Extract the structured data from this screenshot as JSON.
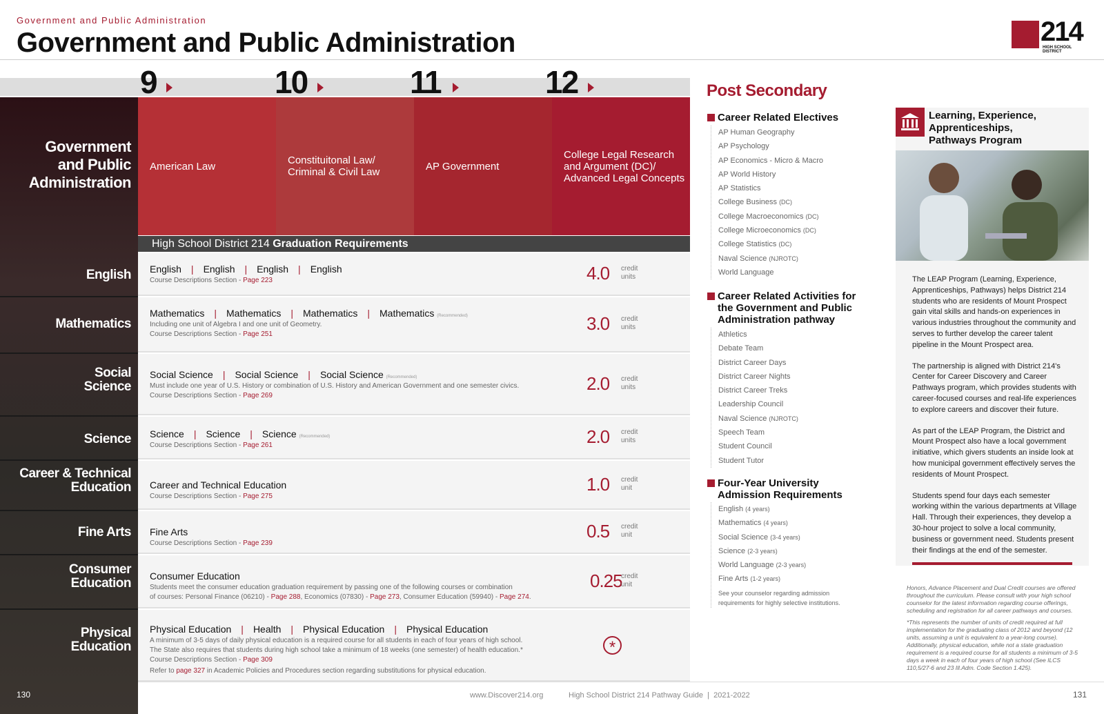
{
  "header": {
    "kicker": "Government and Public Administration",
    "title": "Government and Public Administration",
    "logo_number": "214",
    "logo_sub": "HIGH SCHOOL DISTRICT"
  },
  "grades": [
    "9",
    "10",
    "11",
    "12"
  ],
  "pathway_title": [
    "Government",
    "and Public",
    "Administration"
  ],
  "courses": [
    [
      "American Law"
    ],
    [
      "Constituitonal Law/",
      "Criminal & Civil Law"
    ],
    [
      "AP Government"
    ],
    [
      "College Legal Research",
      "and Argument (DC)/",
      "Advanced Legal Concepts"
    ]
  ],
  "grad_bar": {
    "prefix": "High School District 214 ",
    "bold": "Graduation Requirements"
  },
  "rows": [
    {
      "label": [
        "English"
      ],
      "courses": [
        "English",
        "English",
        "English",
        "English"
      ],
      "rec": "",
      "notes": [],
      "page_prefix": "Course Descriptions Section - ",
      "page": "Page 223",
      "credit": "4.0",
      "credit_label": [
        "credit",
        "units"
      ]
    },
    {
      "label": [
        "Mathematics"
      ],
      "courses": [
        "Mathematics",
        "Mathematics",
        "Mathematics",
        "Mathematics"
      ],
      "rec": "(Recommended)",
      "notes": [
        "Including one unit of Algebra I and one unit of Geometry."
      ],
      "page_prefix": "Course Descriptions Section - ",
      "page": "Page 251",
      "credit": "3.0",
      "credit_label": [
        "credit",
        "units"
      ]
    },
    {
      "label": [
        "Social",
        "Science"
      ],
      "courses": [
        "Social Science",
        "Social Science",
        "Social Science"
      ],
      "rec": "(Recommended)",
      "notes": [
        "Must include one year of U.S. History or combination of U.S. History and American Government and one semester civics."
      ],
      "page_prefix": "Course Descriptions Section - ",
      "page": "Page 269",
      "credit": "2.0",
      "credit_label": [
        "credit",
        "units"
      ]
    },
    {
      "label": [
        "Science"
      ],
      "courses": [
        "Science",
        "Science",
        "Science"
      ],
      "rec": "(Recommended)",
      "notes": [],
      "page_prefix": "Course Descriptions Section - ",
      "page": "Page 261",
      "credit": "2.0",
      "credit_label": [
        "credit",
        "units"
      ]
    },
    {
      "label": [
        "Career & Technical",
        "Education"
      ],
      "courses": [
        "Career and Technical Education"
      ],
      "rec": "",
      "notes": [],
      "page_prefix": "Course Descriptions Section - ",
      "page": "Page 275",
      "credit": "1.0",
      "credit_label": [
        "credit",
        "unit"
      ]
    },
    {
      "label": [
        "Fine Arts"
      ],
      "courses": [
        "Fine Arts"
      ],
      "rec": "",
      "notes": [],
      "page_prefix": "Course Descriptions Section - ",
      "page": "Page 239",
      "credit": "0.5",
      "credit_label": [
        "credit",
        "unit"
      ]
    },
    {
      "label": [
        "Consumer",
        "Education"
      ],
      "courses": [
        "Consumer Education"
      ],
      "rec": "",
      "notes": [
        "Students meet the consumer education graduation requirement by passing one of the following courses or combination"
      ],
      "consumer_line": {
        "a": "of courses: Personal Finance (06210) - ",
        "p1": "Page 288",
        "b": ", Economics (07830) - ",
        "p2": "Page 273",
        "c": ", Consumer Education (59940) - ",
        "p3": "Page 274",
        "d": "."
      },
      "credit": "0.25",
      "credit_label": [
        "credit",
        "unit"
      ]
    },
    {
      "label": [
        "Physical",
        "Education"
      ],
      "courses": [
        "Physical Education",
        "Health",
        "Physical Education",
        "Physical Education"
      ],
      "rec": "",
      "notes": [
        "A minimum of 3-5 days of daily physical education is a required course for all students in each of four years of high school.",
        "The State also requires that students during high school take a minimum of 18 weeks (one semester) of health education.*"
      ],
      "page_prefix": "Course Descriptions Section - ",
      "page": "Page 309",
      "refer": {
        "a": "Refer to ",
        "p": "page 327",
        "b": " in Academic Policies and Procedures section regarding substitutions for physical education."
      },
      "credit": "*"
    }
  ],
  "post": {
    "title": "Post Secondary",
    "electives_head": "Career Related Electives",
    "electives": [
      [
        "AP Human Geography",
        ""
      ],
      [
        "AP Psychology",
        ""
      ],
      [
        "AP Economics - Micro & Macro",
        ""
      ],
      [
        "AP World History",
        ""
      ],
      [
        "AP Statistics",
        ""
      ],
      [
        "College Business ",
        "(DC)"
      ],
      [
        "College Macroeconomics ",
        "(DC)"
      ],
      [
        "College Microeconomics ",
        "(DC)"
      ],
      [
        "College Statistics ",
        "(DC)"
      ],
      [
        "Naval Science ",
        "(NJROTC)"
      ],
      [
        "World Language",
        ""
      ]
    ],
    "activities_head": [
      "Career Related Activities for",
      "the Government and Public",
      "Administration pathway"
    ],
    "activities": [
      [
        "Athletics",
        ""
      ],
      [
        "Debate Team",
        ""
      ],
      [
        "District Career Days",
        ""
      ],
      [
        "District Career Nights",
        ""
      ],
      [
        "District Career Treks",
        ""
      ],
      [
        "Leadership Council",
        ""
      ],
      [
        "Naval Science ",
        "(NJROTC)"
      ],
      [
        "Speech Team",
        ""
      ],
      [
        "Student Council",
        ""
      ],
      [
        "Student Tutor",
        ""
      ]
    ],
    "univ_head": [
      "Four-Year University",
      "Admission Requirements"
    ],
    "univ": [
      [
        "English ",
        "(4 years)"
      ],
      [
        "Mathematics ",
        "(4 years)"
      ],
      [
        "Social Science ",
        "(3-4 years)"
      ],
      [
        "Science ",
        "(2-3 years)"
      ],
      [
        "World Language ",
        "(2-3 years)"
      ],
      [
        "Fine Arts ",
        "(1-2 years)"
      ]
    ],
    "counselor_note": [
      "See your counselor regarding admission",
      "requirements for highly selective institutions."
    ]
  },
  "leap": {
    "title": [
      "Learning, Experience,",
      "Apprenticeships,",
      "Pathways Program"
    ],
    "paragraphs": [
      "The LEAP Program (Learning, Experience, Apprenticeships, Pathways) helps District 214 students who are residents of Mount Prospect gain vital skills and hands-on experiences in various industries throughout the community and serves to further develop the career talent pipeline in the Mount Prospect area.",
      "The partnership is aligned with District 214's Center for Career Discovery and Career Pathways program, which provides students with career-focused courses and real-life experiences to explore careers and discover their future.",
      "As part of the LEAP Program, the District and Mount Prospect also have a local government initiative, which givers students an inside look at how municipal government effectively serves the residents of Mount Prospect.",
      "Students spend four days each semester working within the various departments at Village Hall. Through their experiences, they develop a 30-hour project to solve a local community, business or government need. Students present their findings at the end of the semester."
    ]
  },
  "footnotes": [
    "Honors, Advance Placement and Dual Credit courses are offered throughout the curriculum. Please consult with your high school counselor for the latest information regarding course offerings, scheduling and registration for all career pathways and courses.",
    "*This represents the number of units of credit required at full implementation for the graduating class of 2012 and beyond (12 units, assuming a unit is equivalent to a year-long course). Additionally, physical education, while not a state graduation requirement is a required course for all students a minimum of 3-5 days a week in each of four years of high school (See ILCS 110,5/27-6 and 23 Ill.Adm. Code Section 1.425)."
  ],
  "footer": {
    "page_left": "130",
    "url": "www.Discover214.org",
    "guide": "High School District 214 Pathway Guide  |  2021-2022",
    "page_right": "131"
  },
  "colors": {
    "accent": "#a51c30",
    "dark": "#2b1015"
  }
}
